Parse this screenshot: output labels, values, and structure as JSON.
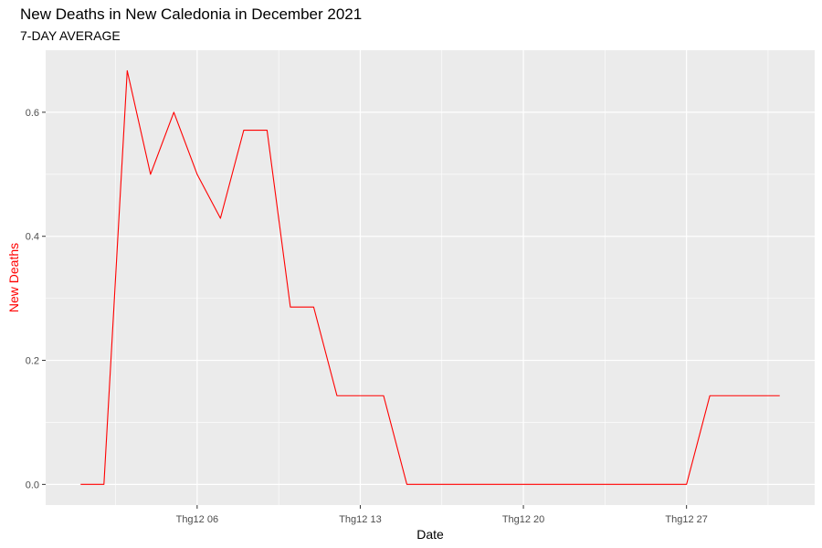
{
  "chart_data": {
    "type": "line",
    "title": "New Deaths in New Caledonia in December 2021",
    "subtitle": "7-DAY AVERAGE",
    "xlabel": "Date",
    "ylabel": "New Deaths",
    "x": [
      "2021-12-01",
      "2021-12-02",
      "2021-12-03",
      "2021-12-04",
      "2021-12-05",
      "2021-12-06",
      "2021-12-07",
      "2021-12-08",
      "2021-12-09",
      "2021-12-10",
      "2021-12-11",
      "2021-12-12",
      "2021-12-13",
      "2021-12-14",
      "2021-12-15",
      "2021-12-16",
      "2021-12-17",
      "2021-12-18",
      "2021-12-19",
      "2021-12-20",
      "2021-12-21",
      "2021-12-22",
      "2021-12-23",
      "2021-12-24",
      "2021-12-25",
      "2021-12-26",
      "2021-12-27",
      "2021-12-28",
      "2021-12-29",
      "2021-12-30",
      "2021-12-31"
    ],
    "series": [
      {
        "values": [
          0,
          0,
          0.667,
          0.5,
          0.6,
          0.5,
          0.429,
          0.571,
          0.571,
          0.286,
          0.286,
          0.143,
          0.143,
          0.143,
          0,
          0,
          0,
          0,
          0,
          0,
          0,
          0,
          0,
          0,
          0,
          0,
          0,
          0.143,
          0.143,
          0.143,
          0.143
        ],
        "color": "#ff0000"
      }
    ],
    "x_ticks": [
      {
        "date": "2021-12-06",
        "label": "Thg12 06"
      },
      {
        "date": "2021-12-13",
        "label": "Thg12 13"
      },
      {
        "date": "2021-12-20",
        "label": "Thg12 20"
      },
      {
        "date": "2021-12-27",
        "label": "Thg12 27"
      }
    ],
    "y_ticks": [
      {
        "value": 0,
        "label": "0.0"
      },
      {
        "value": 0.2,
        "label": "0.2"
      },
      {
        "value": 0.4,
        "label": "0.4"
      },
      {
        "value": 0.6,
        "label": "0.6"
      }
    ],
    "xlim": [
      "2021-11-29T12:00",
      "2022-01-01T12:00"
    ],
    "ylim": [
      -0.03334,
      0.7
    ],
    "grid": true,
    "panel_color": "#ebebeb",
    "ylabel_color": "#ff0000"
  }
}
